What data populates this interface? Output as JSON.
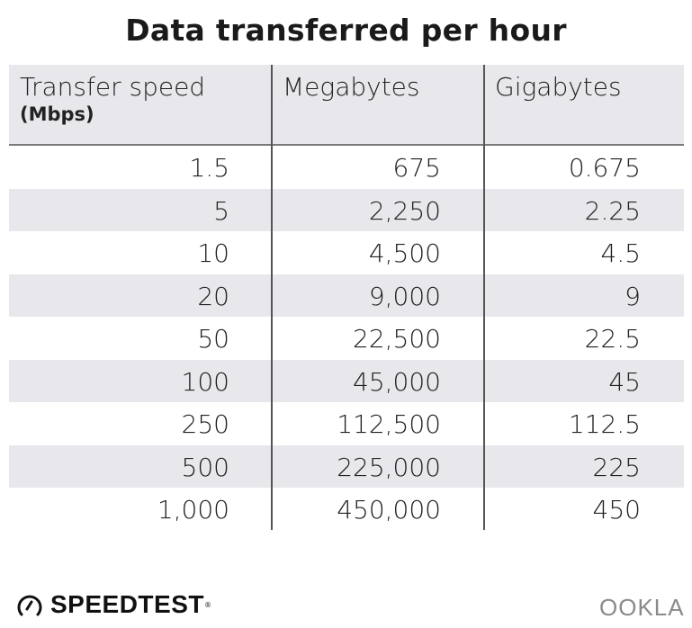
{
  "title": "Data transferred per hour",
  "chart_data": {
    "type": "table",
    "title": "Data transferred per hour",
    "columns": [
      {
        "label": "Transfer speed",
        "unit": "(Mbps)"
      },
      {
        "label": "Megabytes"
      },
      {
        "label": "Gigabytes"
      }
    ],
    "rows": [
      [
        "1.5",
        "675",
        "0.675"
      ],
      [
        "5",
        "2,250",
        "2.25"
      ],
      [
        "10",
        "4,500",
        "4.5"
      ],
      [
        "20",
        "9,000",
        "9"
      ],
      [
        "50",
        "22,500",
        "22.5"
      ],
      [
        "100",
        "45,000",
        "45"
      ],
      [
        "250",
        "112,500",
        "112.5"
      ],
      [
        "500",
        "225,000",
        "225"
      ],
      [
        "1,000",
        "450,000",
        "450"
      ]
    ]
  },
  "footer": {
    "left_logo": "SPEEDTEST",
    "right_logo": "OOKLA"
  },
  "colors": {
    "header_bg": "#e8e8ec",
    "stripe": "#e8e8ec",
    "divider": "#555555",
    "ookla": "#8a8a8a"
  }
}
